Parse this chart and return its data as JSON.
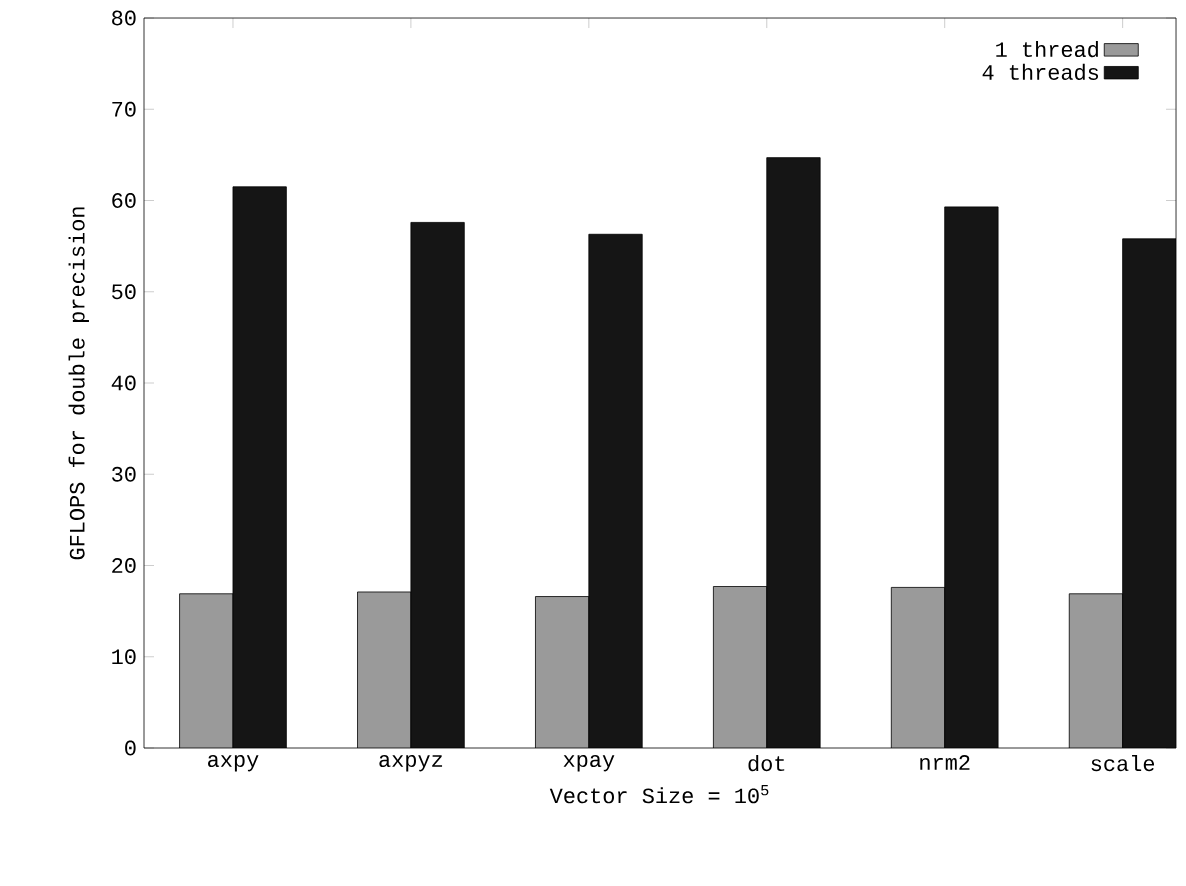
{
  "chart_data": {
    "type": "bar",
    "xlabel": "Vector Size = 10$^{5}$",
    "ylabel": "GFLOPS for double precision",
    "categories": [
      "axpy",
      "axpyz",
      "xpay",
      "dot",
      "nrm2",
      "scale"
    ],
    "series": [
      {
        "name": "1 thread",
        "color": "#9a9a9a",
        "values": [
          16.9,
          17.1,
          16.6,
          17.7,
          17.6,
          16.9
        ]
      },
      {
        "name": "4 threads",
        "color": "#151515",
        "values": [
          61.5,
          57.6,
          56.3,
          64.7,
          59.3,
          55.8
        ]
      }
    ],
    "ylim": [
      0,
      80
    ],
    "yticks": [
      0,
      10,
      20,
      30,
      40,
      50,
      60,
      70,
      80
    ],
    "grid": false,
    "legend": "top right"
  }
}
